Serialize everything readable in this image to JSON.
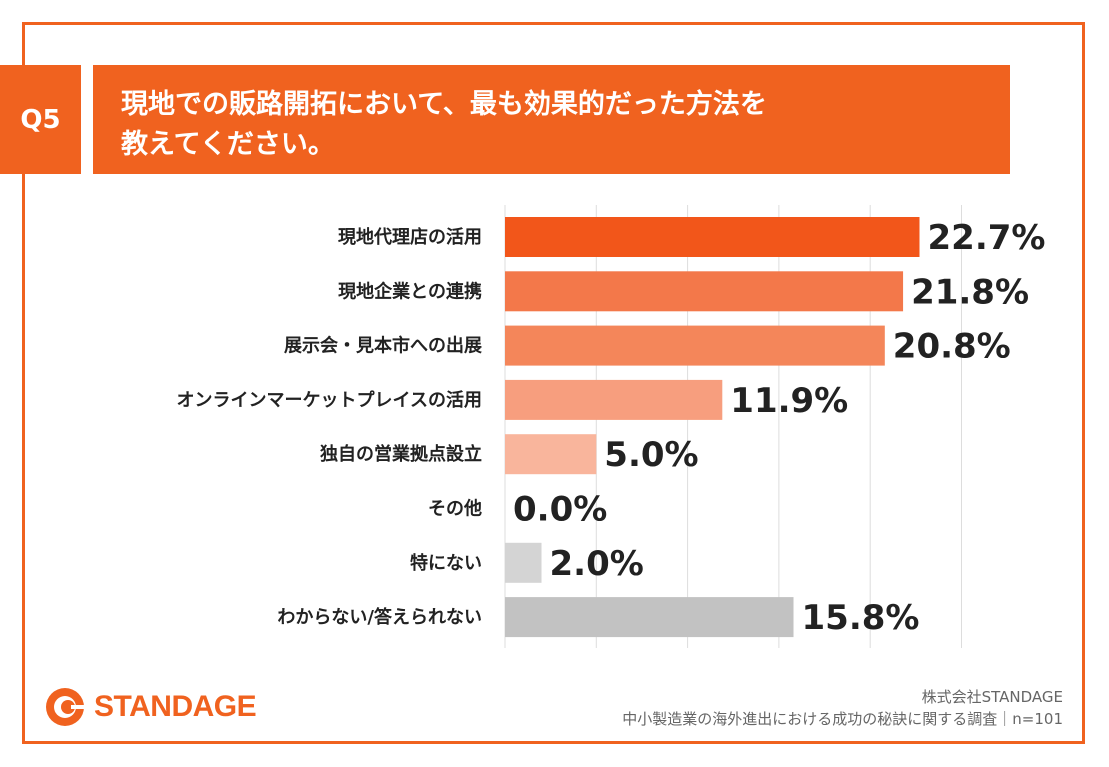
{
  "question": {
    "tag": "Q5",
    "lines": [
      "現地での販路開拓において、最も効果的だった方法を",
      "教えてください。"
    ]
  },
  "colors": {
    "accent": "#F0621F",
    "gray": "#C2C2C2",
    "light_gray": "#D4D4D4"
  },
  "chart_data": {
    "type": "bar",
    "orientation": "horizontal",
    "title": "現地での販路開拓において、最も効果的だった方法を教えてください。",
    "xlim": [
      0,
      25
    ],
    "grid": true,
    "categories": [
      "現地代理店の活用",
      "現地企業との連携",
      "展示会・見本市への出展",
      "オンラインマーケットプレイスの活用",
      "独自の営業拠点設立",
      "その他",
      "特にない",
      "わからない/答えられない"
    ],
    "values": [
      22.7,
      21.8,
      20.8,
      11.9,
      5.0,
      0.0,
      2.0,
      15.8
    ],
    "value_labels": [
      "22.7%",
      "21.8%",
      "20.8%",
      "11.9%",
      "5.0%",
      "0.0%",
      "2.0%",
      "15.8%"
    ],
    "bar_colors": [
      "#F2561A",
      "#F3784A",
      "#F4865A",
      "#F79E7E",
      "#F9B59C",
      "#F9B59C",
      "#D4D4D4",
      "#C2C2C2"
    ]
  },
  "footer": {
    "brand": "STANDAGE",
    "company": "株式会社STANDAGE",
    "survey": "中小製造業の海外進出における成功の秘訣に関する調査｜n=101"
  }
}
